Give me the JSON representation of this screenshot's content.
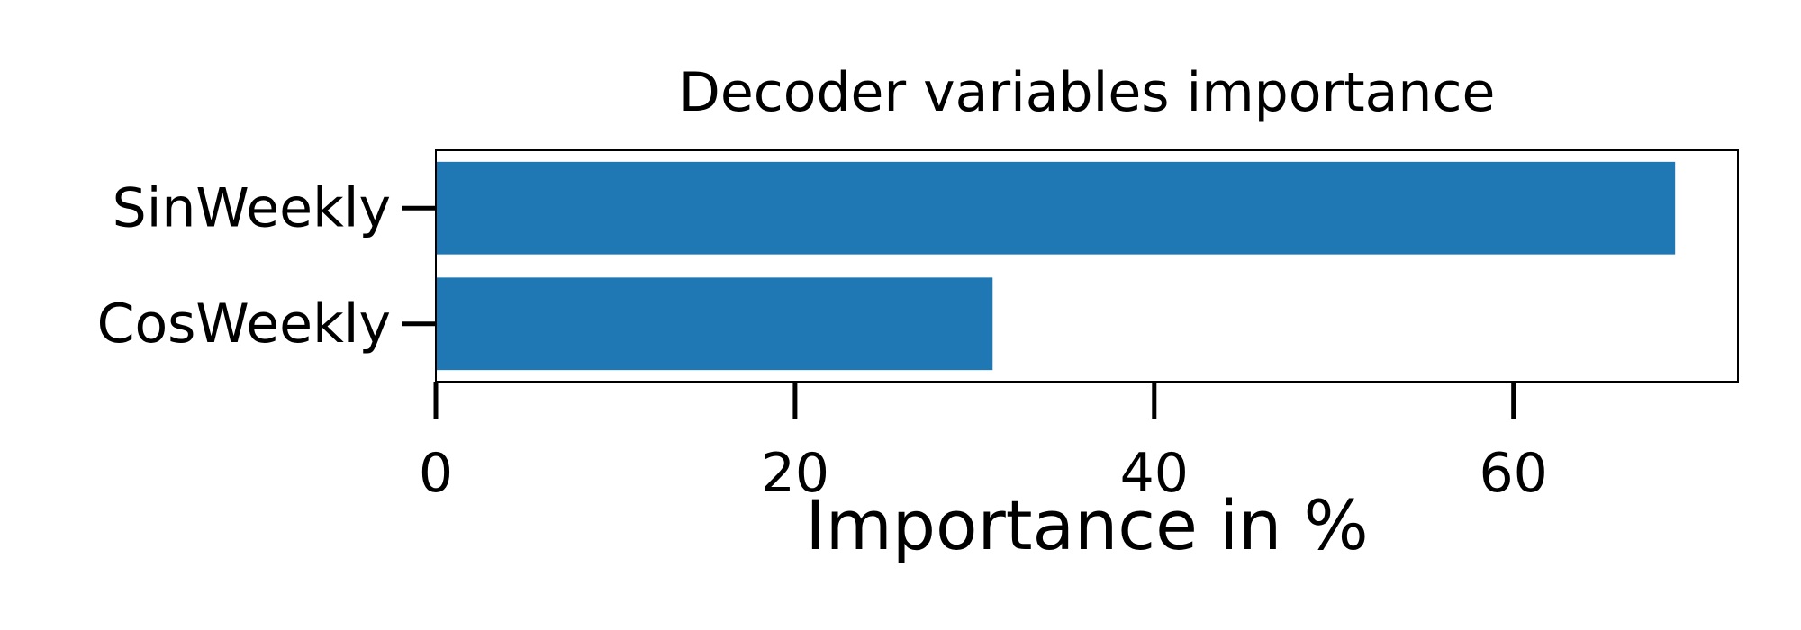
{
  "chart_data": {
    "type": "bar",
    "orientation": "horizontal",
    "title": "Decoder variables importance",
    "xlabel": "Importance in %",
    "ylabel": "",
    "categories": [
      "SinWeekly",
      "CosWeekly"
    ],
    "values": [
      69,
      31
    ],
    "xlim": [
      0,
      72.5
    ],
    "xticks": [
      0,
      20,
      40,
      60
    ],
    "bar_color": "#1f77b4",
    "grid": false,
    "legend": false
  }
}
